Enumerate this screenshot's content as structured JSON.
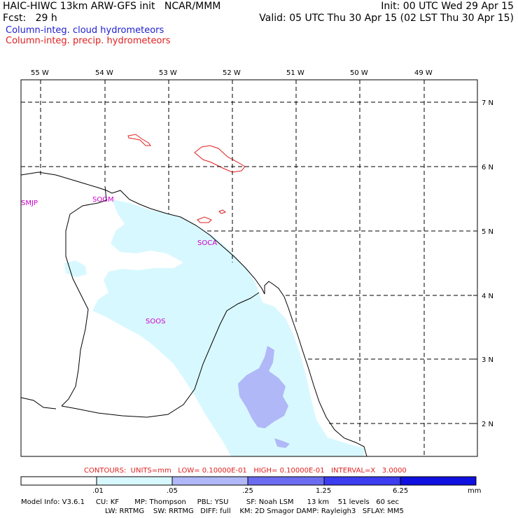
{
  "header": {
    "line1_left": "HAIC-HIWC 13km ARW-GFS init   NCAR/MMM",
    "line1_right": "Init: 00 UTC Wed 29 Apr 15",
    "line2_left": "Fcst:   29 h",
    "line2_right": "Valid: 05 UTC Thu 30 Apr 15 (02 LST Thu 30 Apr 15)",
    "legend_cloud": "Column-integ. cloud hydrometeors",
    "legend_precip": "Column-integ. precip. hydrometeors",
    "cloud_color": "#2020d0",
    "precip_color": "#e02020"
  },
  "axes": {
    "lon_labels": [
      "55 W",
      "54 W",
      "53 W",
      "52 W",
      "51 W",
      "50 W",
      "49 W"
    ],
    "lat_labels": [
      "7 N",
      "6 N",
      "5 N",
      "4 N",
      "3 N",
      "2 N"
    ]
  },
  "stations": [
    "SMJP",
    "SOGM",
    "SOCA",
    "SOOS"
  ],
  "contour_info": "CONTOURS:  UNITS=mm   LOW= 0.10000E-01   HIGH= 0.10000E-01   INTERVAL=X   3.0000",
  "colorbar": {
    "colors": [
      "#ffffff",
      "#d8f8ff",
      "#b0b8f8",
      "#6c6cf0",
      "#3c3cf0",
      "#1010e0"
    ],
    "labels": [
      ".01",
      ".05",
      ".25",
      "1.25",
      "6.25"
    ],
    "units": "mm"
  },
  "model_info": {
    "line1": "Model Info: V3.6.1     CU: KF       MP: Thompson     PBL: YSU        SF: Noah LSM      13 km    51 levels   60 sec",
    "line2": "LW: RRTMG    SW: RRTMG   DIFF: full    KM: 2D Smagor DAMP: Rayleigh3   SFLAY: MM5"
  }
}
